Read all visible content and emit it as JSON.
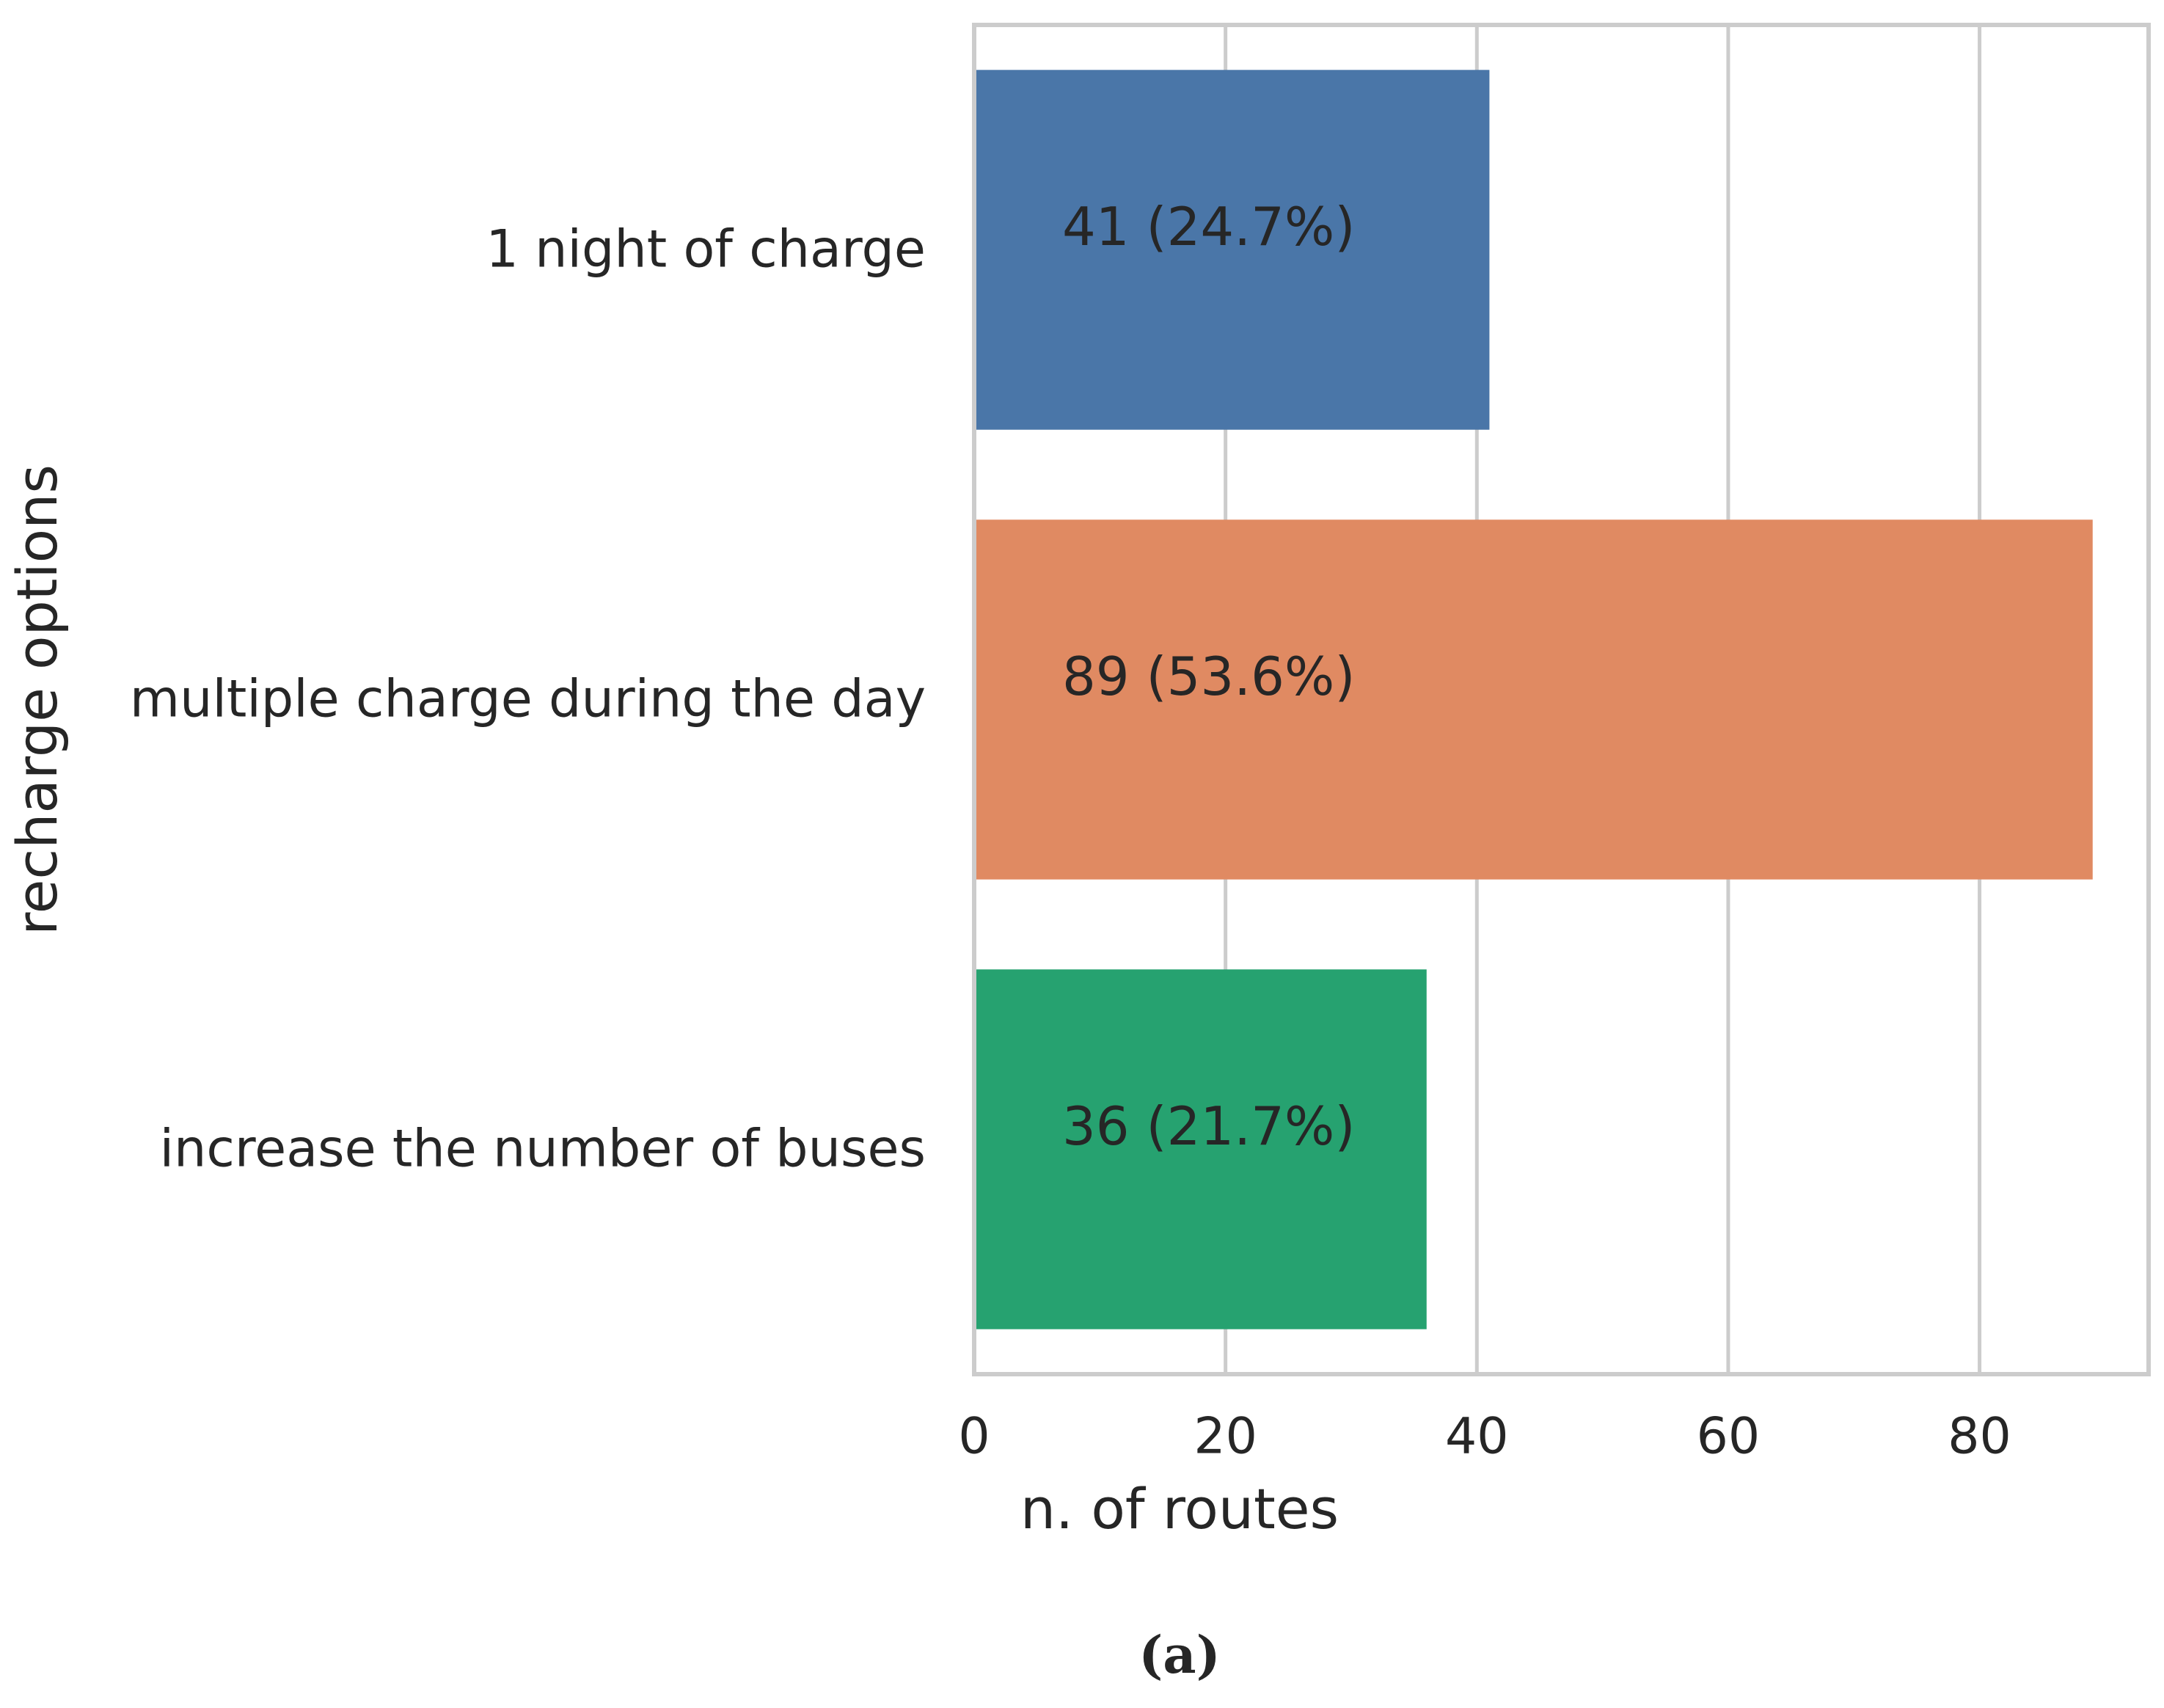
{
  "chart_data": {
    "type": "barh",
    "categories": [
      "1 night of charge",
      "multiple charge during the day",
      "increase the number of buses"
    ],
    "values": [
      41,
      89,
      36
    ],
    "value_labels": [
      "41 (24.7%)",
      "89 (53.6%)",
      "36 (21.7%)"
    ],
    "colors": [
      "#4a76a8",
      "#e08a62",
      "#26a270"
    ],
    "xlabel": "n. of routes",
    "ylabel": "recharge options",
    "xlim": [
      0,
      93.45
    ],
    "xticks": [
      0,
      20,
      40,
      60,
      80
    ],
    "grid": true,
    "caption": "(a)"
  }
}
